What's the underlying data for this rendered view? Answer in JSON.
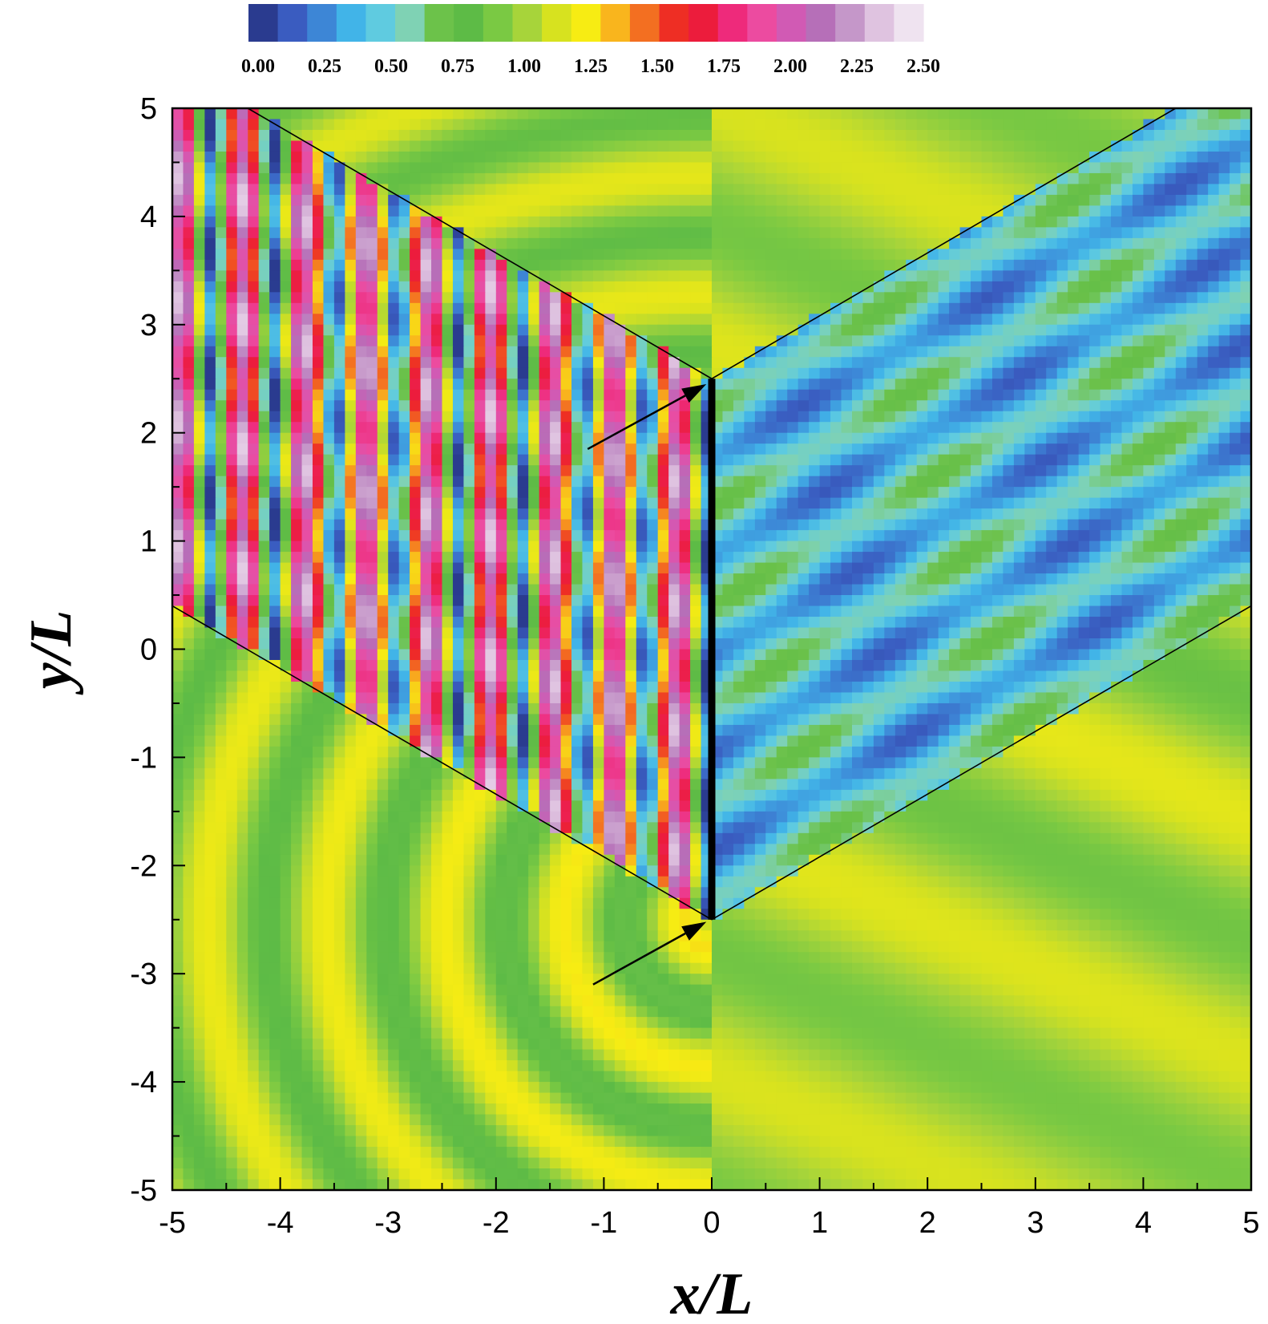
{
  "chart_data": {
    "type": "heatmap",
    "title": "",
    "xlabel": "x/L",
    "ylabel": "y/L",
    "xlim": [
      -5,
      5
    ],
    "ylim": [
      -5,
      5
    ],
    "x_ticks": [
      "-5",
      "-4",
      "-3",
      "-2",
      "-1",
      "0",
      "1",
      "2",
      "3",
      "4",
      "5"
    ],
    "y_ticks": [
      "-5",
      "-4",
      "-3",
      "-2",
      "-1",
      "0",
      "1",
      "2",
      "3",
      "4",
      "5"
    ],
    "colorbar": {
      "range": [
        0,
        2.5
      ],
      "tick_labels": [
        "0.00",
        "0.25",
        "0.50",
        "0.75",
        "1.00",
        "1.25",
        "1.50",
        "1.75",
        "2.00",
        "2.25",
        "2.50"
      ],
      "colors": [
        "#2a3b8f",
        "#3a5cc0",
        "#3d86d6",
        "#41b4e8",
        "#5fcbe0",
        "#7fd2b4",
        "#6cc24a",
        "#5dbb46",
        "#7ac943",
        "#a7d43a",
        "#d7e21f",
        "#f7ec13",
        "#f9b51d",
        "#f36f21",
        "#ee2e24",
        "#ec1c3c",
        "#ee2a7b",
        "#ec4ba0",
        "#d15ab4",
        "#b66fb8",
        "#c597c9",
        "#dfc3e0",
        "#efe3f0"
      ]
    },
    "barrier": {
      "x": 0,
      "y": [
        -2.5,
        2.5
      ]
    },
    "guide_lines": [
      {
        "x": [
          -4.3,
          0
        ],
        "y": [
          5,
          2.5
        ]
      },
      {
        "x": [
          -5,
          0
        ],
        "y": [
          0.4,
          -2.5
        ]
      },
      {
        "x": [
          0,
          4.3
        ],
        "y": [
          2.5,
          5
        ]
      },
      {
        "x": [
          0,
          5
        ],
        "y": [
          -2.5,
          0.4
        ]
      }
    ],
    "arrows": [
      {
        "from": [
          -1.15,
          1.85
        ],
        "to": [
          -0.05,
          2.45
        ]
      },
      {
        "from": [
          -1.1,
          -3.1
        ],
        "to": [
          -0.05,
          -2.52
        ]
      }
    ]
  }
}
